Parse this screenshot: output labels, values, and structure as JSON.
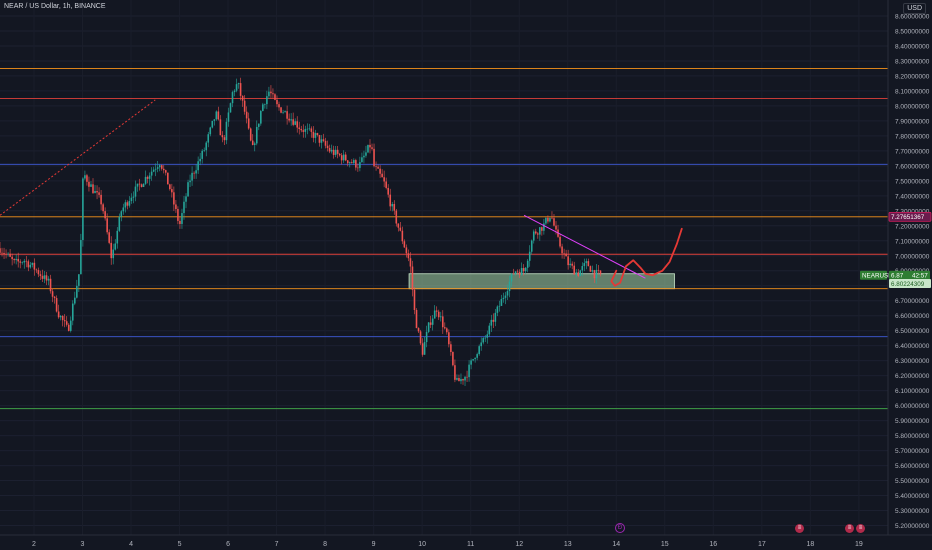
{
  "header": {
    "symbol_title": "NEAR / US Dollar, 1h, BINANCE",
    "currency": "USD"
  },
  "events": {
    "dividend_glyph": "Ð",
    "news_glyph": "≡"
  },
  "colors": {
    "background": "#131722",
    "up_candle": "#26a69a",
    "down_candle": "#ef5350",
    "orange_level": "#f7931a",
    "red_level": "#e0413a",
    "blue_level": "#3f5bd9",
    "green_level": "#3fa047",
    "drawing_red": "#e53935",
    "trendline_pink": "#e040fb",
    "zone_fill": "#a5d6a7"
  },
  "chart_data": {
    "type": "candlestick",
    "symbol": "NEARUSD",
    "exchange": "BINANCE",
    "interval": "1h",
    "ylim": [
      5.15,
      8.7
    ],
    "y_ticks": [
      "8.60000000",
      "8.50000000",
      "8.40000000",
      "8.30000000",
      "8.20000000",
      "8.10000000",
      "8.00000000",
      "7.90000000",
      "7.80000000",
      "7.70000000",
      "7.60000000",
      "7.50000000",
      "7.40000000",
      "7.30000000",
      "7.20000000",
      "7.10000000",
      "7.00000000",
      "6.90000000",
      "6.80000000",
      "6.70000000",
      "6.60000000",
      "6.50000000",
      "6.40000000",
      "6.30000000",
      "6.20000000",
      "6.10000000",
      "6.00000000",
      "5.90000000",
      "5.80000000",
      "5.70000000",
      "5.60000000",
      "5.50000000",
      "5.40000000",
      "5.30000000",
      "5.20000000"
    ],
    "x_ticks": [
      "2",
      "3",
      "4",
      "5",
      "6",
      "7",
      "8",
      "9",
      "10",
      "11",
      "12",
      "13",
      "14",
      "15",
      "16",
      "17",
      "18",
      "19"
    ],
    "x_domain": [
      1.3,
      19.6
    ],
    "horizontal_levels": [
      {
        "price": 8.25,
        "color": "orange"
      },
      {
        "price": 8.05,
        "color": "red"
      },
      {
        "price": 7.61,
        "color": "blue"
      },
      {
        "price": 7.26,
        "color": "orange"
      },
      {
        "price": 7.01,
        "color": "red"
      },
      {
        "price": 6.78,
        "color": "orange"
      },
      {
        "price": 6.46,
        "color": "blue"
      },
      {
        "price": 5.98,
        "color": "green"
      }
    ],
    "support_zone": {
      "from_day": 9.73,
      "to_day": 15.2,
      "low": 6.78,
      "high": 6.88
    },
    "dotted_trendline": {
      "from": [
        1.3,
        7.27
      ],
      "to": [
        4.5,
        8.04
      ]
    },
    "descending_trendline": {
      "from": [
        12.1,
        7.27
      ],
      "to": [
        14.6,
        6.85
      ]
    },
    "projection_path": [
      [
        14.0,
        6.9
      ],
      [
        13.9,
        6.83
      ],
      [
        13.97,
        6.8
      ],
      [
        14.08,
        6.82
      ],
      [
        14.2,
        6.93
      ],
      [
        14.35,
        6.97
      ],
      [
        14.5,
        6.92
      ],
      [
        14.6,
        6.88
      ],
      [
        14.75,
        6.87
      ],
      [
        14.95,
        6.9
      ],
      [
        15.1,
        6.96
      ],
      [
        15.25,
        7.08
      ],
      [
        15.35,
        7.18
      ]
    ],
    "price_labels": [
      {
        "text": "7.27651367",
        "price": 7.26,
        "style": "level"
      },
      {
        "text": "NEARUSD",
        "price": 6.87,
        "style": "symbol"
      },
      {
        "text": "6.87",
        "price": 6.87,
        "style": "current"
      },
      {
        "text": "42:57",
        "price": 6.87,
        "style": "countdown"
      },
      {
        "text": "6.80224309",
        "price": 6.815,
        "style": "zone"
      }
    ],
    "price_path": [
      [
        1.3,
        7.05
      ],
      [
        1.6,
        6.95
      ],
      [
        1.8,
        6.97
      ],
      [
        2.0,
        6.92
      ],
      [
        2.3,
        6.82
      ],
      [
        2.5,
        6.62
      ],
      [
        2.7,
        6.5
      ],
      [
        2.85,
        6.75
      ],
      [
        2.95,
        6.92
      ],
      [
        3.0,
        7.45
      ],
      [
        3.02,
        7.55
      ],
      [
        3.2,
        7.45
      ],
      [
        3.4,
        7.35
      ],
      [
        3.6,
        6.98
      ],
      [
        3.8,
        7.3
      ],
      [
        4.0,
        7.4
      ],
      [
        4.3,
        7.52
      ],
      [
        4.6,
        7.63
      ],
      [
        4.8,
        7.45
      ],
      [
        5.0,
        7.2
      ],
      [
        5.2,
        7.5
      ],
      [
        5.5,
        7.7
      ],
      [
        5.75,
        7.95
      ],
      [
        5.9,
        7.75
      ],
      [
        6.1,
        8.1
      ],
      [
        6.2,
        8.15
      ],
      [
        6.35,
        7.95
      ],
      [
        6.5,
        7.7
      ],
      [
        6.7,
        8.0
      ],
      [
        6.85,
        8.1
      ],
      [
        7.0,
        8.0
      ],
      [
        7.2,
        7.95
      ],
      [
        7.5,
        7.85
      ],
      [
        7.8,
        7.8
      ],
      [
        8.1,
        7.7
      ],
      [
        8.4,
        7.65
      ],
      [
        8.7,
        7.6
      ],
      [
        8.95,
        7.75
      ],
      [
        9.0,
        7.6
      ],
      [
        9.2,
        7.5
      ],
      [
        9.4,
        7.3
      ],
      [
        9.6,
        7.1
      ],
      [
        9.75,
        6.95
      ],
      [
        9.85,
        6.6
      ],
      [
        10.0,
        6.35
      ],
      [
        10.15,
        6.55
      ],
      [
        10.3,
        6.65
      ],
      [
        10.5,
        6.48
      ],
      [
        10.7,
        6.15
      ],
      [
        10.9,
        6.2
      ],
      [
        11.1,
        6.35
      ],
      [
        11.3,
        6.45
      ],
      [
        11.5,
        6.6
      ],
      [
        11.7,
        6.75
      ],
      [
        11.9,
        6.9
      ],
      [
        12.1,
        6.9
      ],
      [
        12.3,
        7.15
      ],
      [
        12.5,
        7.2
      ],
      [
        12.65,
        7.28
      ],
      [
        12.8,
        7.1
      ],
      [
        13.0,
        6.95
      ],
      [
        13.2,
        6.88
      ],
      [
        13.4,
        6.95
      ],
      [
        13.55,
        6.88
      ],
      [
        13.7,
        6.87
      ]
    ]
  }
}
